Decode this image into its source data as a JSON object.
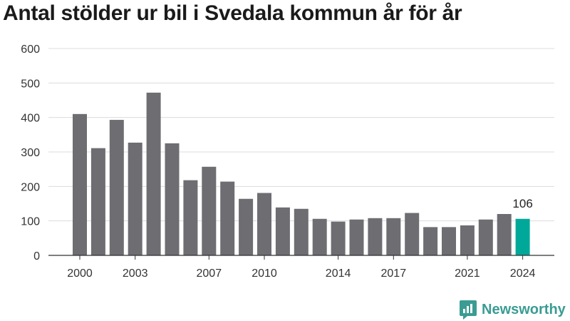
{
  "title": "Antal stölder ur bil i Svedala kommun år för år",
  "brand": "Newsworthy",
  "colors": {
    "bar": "#6e6d72",
    "highlight": "#00a89a",
    "grid": "#dcdcdc",
    "brand": "#3a9c93"
  },
  "chart_data": {
    "type": "bar",
    "title": "Antal stölder ur bil i Svedala kommun år för år",
    "x": [
      2000,
      2001,
      2002,
      2003,
      2004,
      2005,
      2006,
      2007,
      2008,
      2009,
      2010,
      2011,
      2012,
      2013,
      2014,
      2015,
      2016,
      2017,
      2018,
      2019,
      2020,
      2021,
      2022,
      2023,
      2024
    ],
    "values": [
      410,
      311,
      393,
      327,
      472,
      325,
      218,
      257,
      214,
      164,
      181,
      139,
      135,
      106,
      98,
      104,
      108,
      108,
      123,
      82,
      82,
      87,
      104,
      120,
      106
    ],
    "highlight": {
      "x": 2024,
      "label": "106"
    },
    "x_ticks": [
      2000,
      2003,
      2007,
      2010,
      2014,
      2017,
      2021,
      2024
    ],
    "y_ticks": [
      0,
      100,
      200,
      300,
      400,
      500,
      600
    ],
    "ylim": [
      0,
      600
    ],
    "xlabel": "",
    "ylabel": "",
    "grid": true
  }
}
